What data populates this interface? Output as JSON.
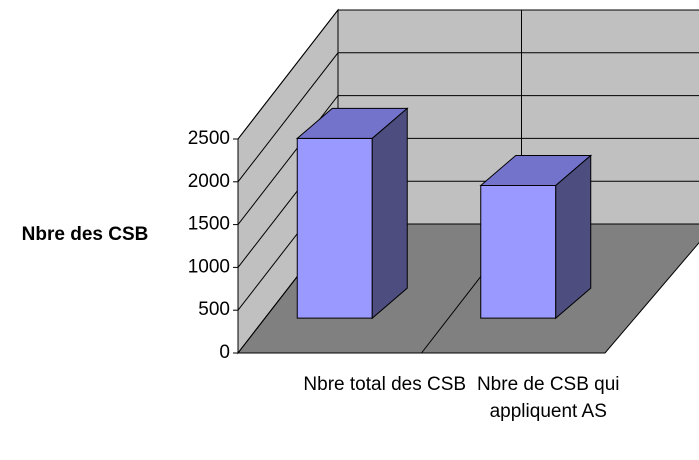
{
  "chart_data": {
    "type": "bar3d",
    "ylabel": "Nbre des CSB",
    "categories": [
      "Nbre total des CSB",
      "Nbre de CSB qui appliquent AS"
    ],
    "values": [
      2100,
      1550
    ],
    "color": "#9999ff",
    "ylim": [
      0,
      2500
    ],
    "yticks": [
      0,
      500,
      1000,
      1500,
      2000,
      2500
    ],
    "grid": true
  }
}
